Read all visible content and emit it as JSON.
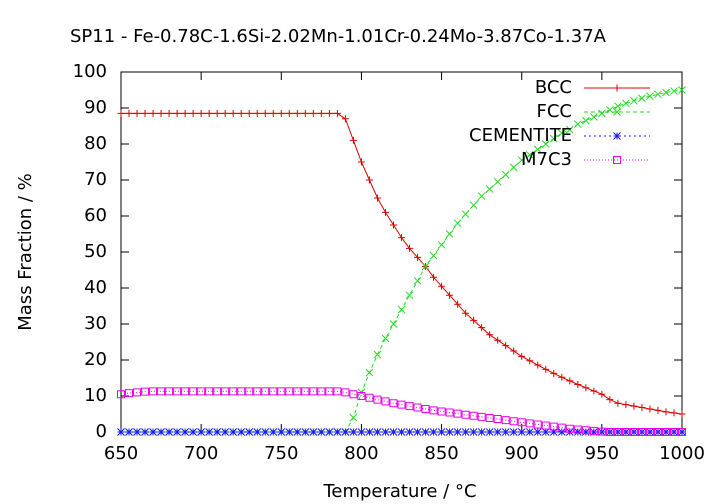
{
  "chart_data": {
    "type": "line",
    "title": "SP11 - Fe-0.78C-1.6Si-2.02Mn-1.01Cr-0.24Mo-3.87Co-1.37A",
    "xlabel": "Temperature / °C",
    "ylabel": "Mass Fraction / %",
    "x": [
      650,
      655,
      660,
      665,
      670,
      675,
      680,
      685,
      690,
      695,
      700,
      705,
      710,
      715,
      720,
      725,
      730,
      735,
      740,
      745,
      750,
      755,
      760,
      765,
      770,
      775,
      780,
      785,
      790,
      795,
      800,
      805,
      810,
      815,
      820,
      825,
      830,
      835,
      840,
      845,
      850,
      855,
      860,
      865,
      870,
      875,
      880,
      885,
      890,
      895,
      900,
      905,
      910,
      915,
      920,
      925,
      930,
      935,
      940,
      945,
      950,
      955,
      960,
      965,
      970,
      975,
      980,
      985,
      990,
      995,
      1000
    ],
    "series": [
      {
        "name": "BCC",
        "color": "#dd0000",
        "marker": "plus",
        "values": [
          88.5,
          88.5,
          88.5,
          88.5,
          88.5,
          88.5,
          88.5,
          88.5,
          88.5,
          88.5,
          88.5,
          88.5,
          88.5,
          88.5,
          88.5,
          88.5,
          88.5,
          88.5,
          88.5,
          88.5,
          88.5,
          88.5,
          88.5,
          88.5,
          88.5,
          88.5,
          88.5,
          88.5,
          87,
          81,
          75,
          70,
          65,
          61,
          57.5,
          54,
          51,
          48.5,
          46,
          43,
          40.5,
          38,
          35.5,
          33,
          31,
          29,
          27,
          25.5,
          24,
          22.5,
          21,
          19.8,
          18.6,
          17.4,
          16.3,
          15.2,
          14.2,
          13.2,
          12.3,
          11.4,
          10.5,
          9,
          8,
          7.6,
          7.2,
          6.8,
          6.4,
          6,
          5.6,
          5.3,
          5
        ]
      },
      {
        "name": "FCC",
        "color": "#22dd22",
        "marker": "cross",
        "values": [
          0,
          0,
          0,
          0,
          0,
          0,
          0,
          0,
          0,
          0,
          0,
          0,
          0,
          0,
          0,
          0,
          0,
          0,
          0,
          0,
          0,
          0,
          0,
          0,
          0,
          0,
          0,
          0,
          0,
          4,
          11,
          16.5,
          21.5,
          26,
          30,
          34,
          38,
          42,
          46,
          49,
          52,
          55,
          58,
          60.5,
          63,
          65.5,
          67.5,
          69.5,
          71.5,
          73.5,
          75.5,
          77,
          78.5,
          80,
          81.5,
          83,
          84,
          85.5,
          86.5,
          87.5,
          88.5,
          89.5,
          90.5,
          91.3,
          92,
          92.7,
          93.3,
          93.8,
          94.3,
          94.7,
          95
        ]
      },
      {
        "name": "CEMENTITE",
        "color": "#1a1aff",
        "marker": "star",
        "values": [
          0,
          0,
          0,
          0,
          0,
          0,
          0,
          0,
          0,
          0,
          0,
          0,
          0,
          0,
          0,
          0,
          0,
          0,
          0,
          0,
          0,
          0,
          0,
          0,
          0,
          0,
          0,
          0,
          0,
          0,
          0,
          0,
          0,
          0,
          0,
          0,
          0,
          0,
          0,
          0,
          0,
          0,
          0,
          0,
          0,
          0,
          0,
          0,
          0,
          0,
          0,
          0,
          0,
          0,
          0,
          0,
          0,
          0,
          0,
          0,
          0,
          0,
          0,
          0,
          0,
          0,
          0,
          0,
          0,
          0,
          0
        ]
      },
      {
        "name": "M7C3",
        "color": "#ee00ee",
        "marker": "square",
        "values": [
          10.5,
          10.8,
          11,
          11.2,
          11.3,
          11.3,
          11.3,
          11.3,
          11.3,
          11.3,
          11.3,
          11.3,
          11.3,
          11.3,
          11.3,
          11.3,
          11.3,
          11.3,
          11.3,
          11.3,
          11.3,
          11.3,
          11.3,
          11.3,
          11.3,
          11.3,
          11.3,
          11.3,
          11,
          10.5,
          10,
          9.5,
          9,
          8.5,
          8,
          7.6,
          7.2,
          6.8,
          6.4,
          6,
          5.7,
          5.4,
          5.1,
          4.8,
          4.5,
          4.2,
          3.9,
          3.6,
          3.3,
          3,
          2.7,
          2.4,
          2.1,
          1.8,
          1.5,
          1.2,
          0.9,
          0.7,
          0.5,
          0.3,
          0.1,
          0,
          0,
          0,
          0,
          0,
          0,
          0,
          0,
          0,
          0
        ]
      }
    ],
    "xlim": [
      650,
      1000
    ],
    "xticks": [
      650,
      700,
      750,
      800,
      850,
      900,
      950,
      1000
    ],
    "ylim": [
      0,
      100
    ],
    "yticks": [
      0,
      10,
      20,
      30,
      40,
      50,
      60,
      70,
      80,
      90,
      100
    ],
    "grid": false,
    "legend": "top right"
  }
}
